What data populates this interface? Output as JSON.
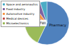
{
  "chart_data": {
    "type": "pie",
    "categories": [
      "Pharmacy",
      "Microelectronics",
      "Medical devices",
      "Automotive industry",
      "Food industry",
      "Space and aeronautics"
    ],
    "values": [
      57,
      18,
      9,
      6,
      5,
      5
    ],
    "colors": [
      "#4f81bd",
      "#9bbb59",
      "#c0504d",
      "#f79646",
      "#8064a2",
      "#4bacc6"
    ],
    "annotations": [
      "TWI",
      "Pharmacy"
    ],
    "legend": "top left"
  }
}
